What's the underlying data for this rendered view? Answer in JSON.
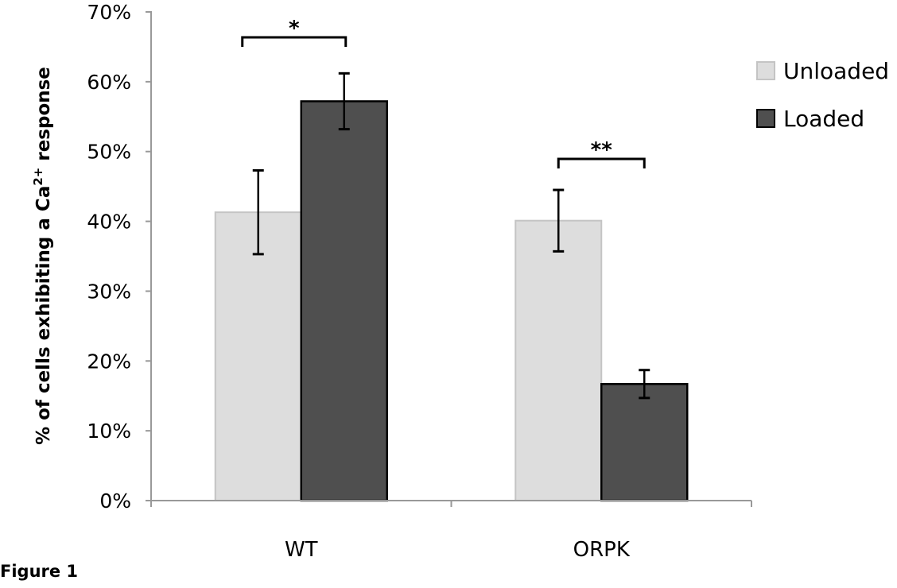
{
  "chart_data": {
    "type": "bar",
    "title": "",
    "caption": "Figure 1",
    "xlabel": "",
    "ylabel": {
      "prefix": "% of cells exhibiting a Ca",
      "sup": "2+",
      "suffix": " response"
    },
    "ylim": [
      0,
      70
    ],
    "yticks": [
      "0%",
      "10%",
      "20%",
      "30%",
      "40%",
      "50%",
      "60%",
      "70%"
    ],
    "categories": [
      "WT",
      "ORPK"
    ],
    "grid": false,
    "legend_position": "right",
    "series": [
      {
        "name": "Unloaded",
        "color": "#dddddd",
        "values": [
          41.3,
          40.1
        ],
        "errors": [
          6.0,
          4.4
        ]
      },
      {
        "name": "Loaded",
        "color": "#4f4f4f",
        "values": [
          57.2,
          16.7
        ],
        "errors": [
          4.0,
          2.0
        ]
      }
    ],
    "annotations": [
      {
        "category": "WT",
        "label": "*"
      },
      {
        "category": "ORPK",
        "label": "**"
      }
    ]
  }
}
